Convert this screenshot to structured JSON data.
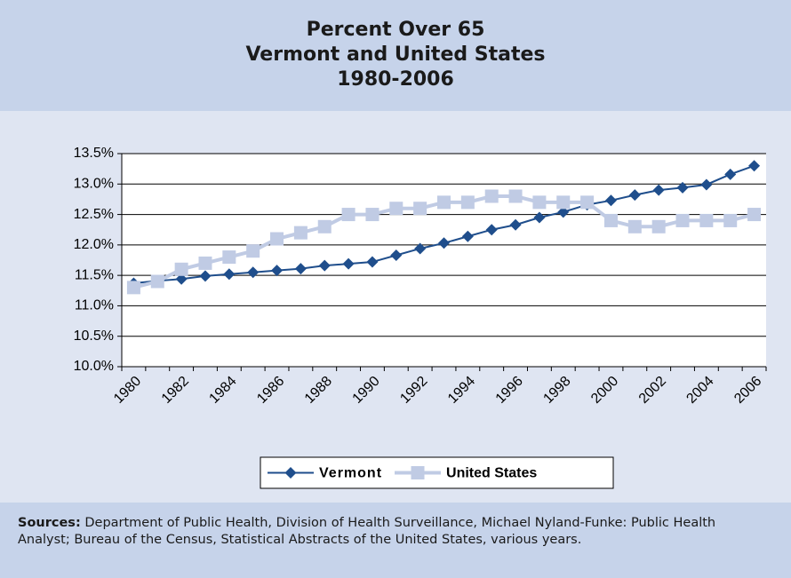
{
  "chart_data": {
    "type": "line",
    "title_lines": [
      "Percent Over 65",
      "Vermont and United States",
      "1980-2006"
    ],
    "categories": [
      "1980",
      null,
      "1982",
      null,
      "1984",
      null,
      "1986",
      null,
      "1988",
      null,
      "1990",
      null,
      "1992",
      null,
      "1994",
      null,
      "1996",
      null,
      "1998",
      null,
      "2000",
      null,
      "2002",
      null,
      "2004",
      null,
      "2006"
    ],
    "series": [
      {
        "name": "Vermont",
        "color": "#1f4e8c",
        "marker": "diamond",
        "values": [
          11.37,
          11.41,
          11.44,
          11.49,
          11.52,
          11.55,
          11.58,
          11.61,
          11.66,
          11.69,
          11.72,
          11.83,
          11.94,
          12.03,
          12.14,
          12.25,
          12.33,
          12.45,
          12.54,
          12.66,
          12.73,
          12.82,
          12.9,
          12.94,
          12.99,
          13.16,
          13.3
        ]
      },
      {
        "name": "United States",
        "color": "#c0cbe4",
        "marker": "square",
        "values": [
          11.3,
          11.4,
          11.6,
          11.7,
          11.8,
          11.9,
          12.1,
          12.2,
          12.3,
          12.5,
          12.5,
          12.6,
          12.6,
          12.7,
          12.7,
          12.8,
          12.8,
          12.7,
          12.7,
          12.7,
          12.4,
          12.3,
          12.3,
          12.4,
          12.4,
          12.4,
          12.5
        ]
      }
    ],
    "ylim": [
      10.0,
      13.5
    ],
    "yticks": [
      {
        "value": 10.0,
        "label": "10.0%"
      },
      {
        "value": 10.5,
        "label": "10.5%"
      },
      {
        "value": 11.0,
        "label": "11.0%"
      },
      {
        "value": 11.5,
        "label": "11.5%"
      },
      {
        "value": 12.0,
        "label": "12.0%"
      },
      {
        "value": 12.5,
        "label": "12.5%"
      },
      {
        "value": 13.0,
        "label": "13.0%"
      },
      {
        "value": 13.5,
        "label": "13.5%"
      }
    ],
    "grid": true,
    "legend": "bottom",
    "sources_label": "Sources:",
    "sources_text": "Department of Public Health, Division of Health Surveillance,  Michael Nyland-Funke: Public Health Analyst; Bureau of the Census, Statistical Abstracts of the United States, various years."
  }
}
